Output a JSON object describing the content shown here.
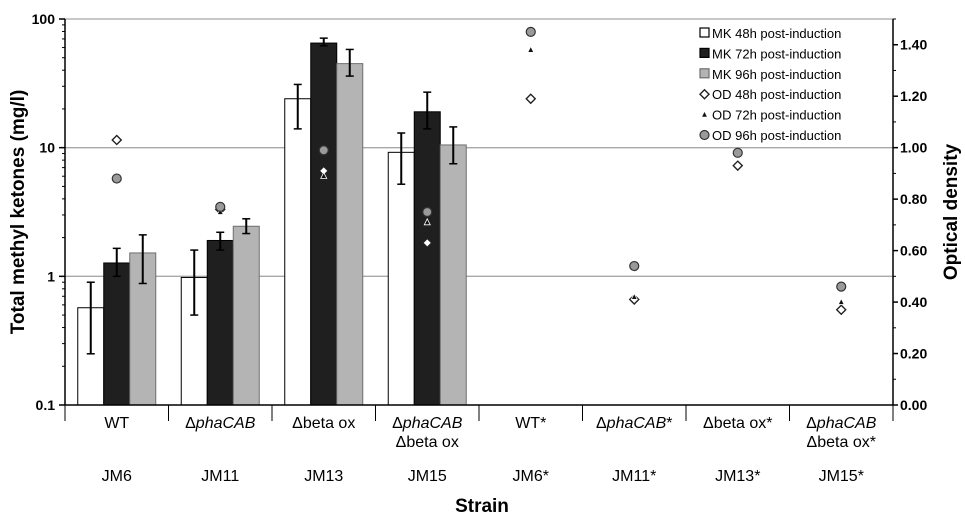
{
  "chart_data": {
    "type": "bar",
    "xlabel": "Strain",
    "ylabel": "Total methyl ketones (mg/l)",
    "y2label": "Optical density",
    "yscale": "log",
    "ylim": [
      0.1,
      100
    ],
    "yticks": [
      "0.1",
      "1",
      "10",
      "100"
    ],
    "y2lim": [
      0,
      1.5
    ],
    "y2ticks": [
      "0.00",
      "0.20",
      "0.40",
      "0.60",
      "0.80",
      "1.00",
      "1.20",
      "1.40"
    ],
    "grid": "horizontal major (log decades)",
    "legend_position": "top-right",
    "categories": [
      {
        "line1": "WT",
        "line2": "",
        "strain": "JM6"
      },
      {
        "line1": "Δ",
        "line1_italic": "phaCAB",
        "line2": "",
        "strain": "JM11"
      },
      {
        "line1": "Δbeta ox",
        "line2": "",
        "strain": "JM13"
      },
      {
        "line1": "Δ",
        "line1_italic": "phaCAB",
        "line2": "Δbeta ox",
        "strain": "JM15"
      },
      {
        "line1": "WT*",
        "line2": "",
        "strain": "JM6*"
      },
      {
        "line1": "Δ",
        "line1_italic": "phaCAB",
        "line1_suffix": "*",
        "line2": "",
        "strain": "JM11*"
      },
      {
        "line1": "Δbeta ox*",
        "line2": "",
        "strain": "JM13*"
      },
      {
        "line1": "Δ",
        "line1_italic": "phaCAB",
        "line2": "Δbeta ox*",
        "strain": "JM15*"
      }
    ],
    "bar_series": [
      {
        "name": "MK 48h post-induction",
        "color": "#ffffff",
        "values": [
          0.57,
          0.98,
          24,
          9.2,
          null,
          null,
          null,
          null
        ],
        "err_low": [
          0.25,
          0.5,
          14,
          5.2,
          null,
          null,
          null,
          null
        ],
        "err_high": [
          0.9,
          1.6,
          31,
          13,
          null,
          null,
          null,
          null
        ]
      },
      {
        "name": "MK 72h post-induction",
        "color": "#1f1f1f",
        "values": [
          1.27,
          1.9,
          65,
          19,
          null,
          null,
          null,
          null
        ],
        "err_low": [
          1.0,
          1.6,
          62,
          14,
          null,
          null,
          null,
          null
        ],
        "err_high": [
          1.65,
          2.2,
          71,
          27,
          null,
          null,
          null,
          null
        ]
      },
      {
        "name": "MK 96h post-induction",
        "color": "#b4b4b4",
        "values": [
          1.52,
          2.45,
          45,
          10.5,
          null,
          null,
          null,
          null
        ],
        "err_low": [
          0.88,
          2.15,
          36,
          7.5,
          null,
          null,
          null,
          null
        ],
        "err_high": [
          2.1,
          2.8,
          58,
          14.5,
          null,
          null,
          null,
          null
        ]
      }
    ],
    "od_series": [
      {
        "name": "OD 48h post-induction",
        "marker": "diamond",
        "values": [
          1.03,
          0.76,
          0.91,
          0.63,
          1.19,
          0.41,
          0.93,
          0.37
        ]
      },
      {
        "name": "OD 72h post-induction",
        "marker": "triangle",
        "values": [
          0.88,
          0.75,
          0.89,
          0.71,
          1.38,
          0.42,
          0.97,
          0.4
        ]
      },
      {
        "name": "OD 96h post-induction",
        "marker": "circle",
        "values": [
          0.88,
          0.77,
          0.99,
          0.75,
          1.45,
          0.54,
          0.98,
          0.46
        ]
      }
    ]
  }
}
